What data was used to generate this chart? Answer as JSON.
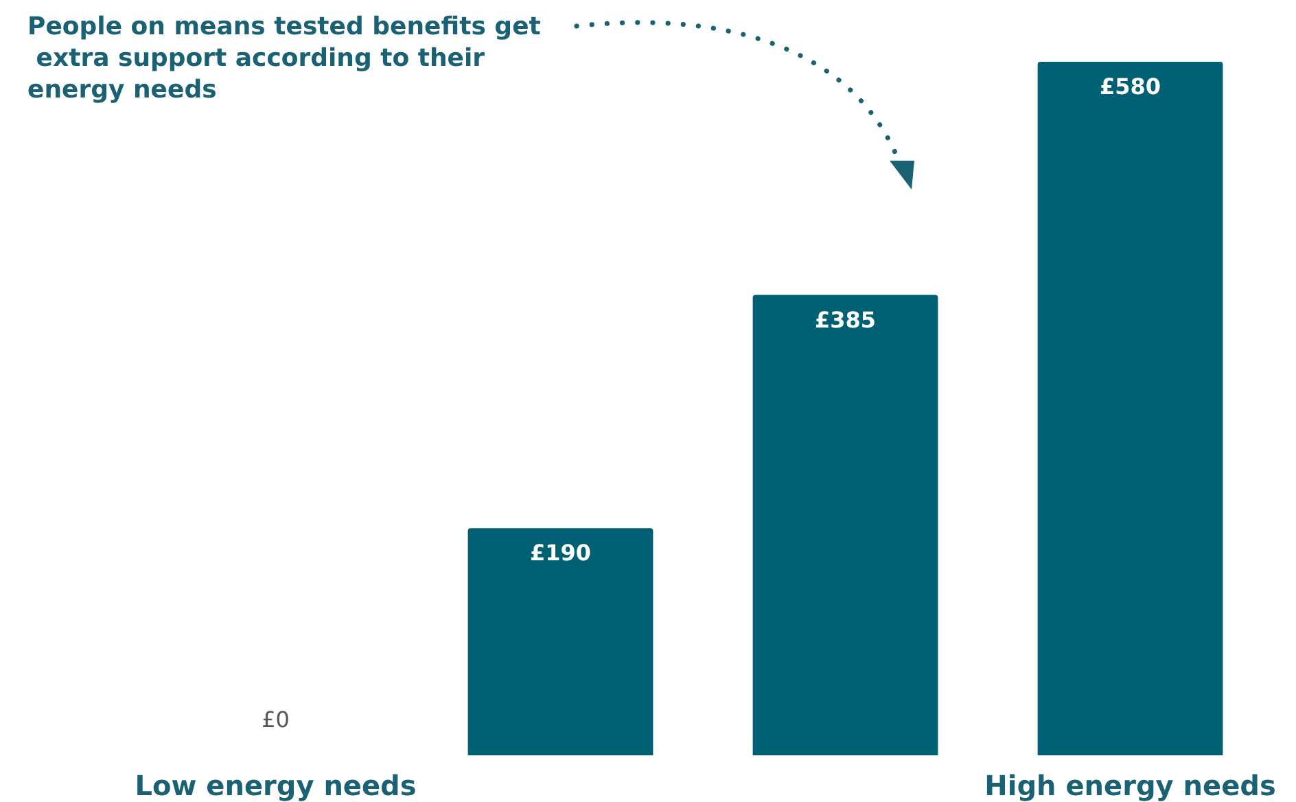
{
  "chart_data": {
    "type": "bar",
    "categories": [
      "Low energy needs",
      null,
      null,
      "High energy needs"
    ],
    "values": [
      0,
      190,
      385,
      580
    ],
    "value_labels": [
      "£0",
      "£190",
      "£385",
      "£580"
    ],
    "color": "#006073",
    "annotations": [
      "People on means tested benefits get extra support according to their energy needs"
    ]
  }
}
